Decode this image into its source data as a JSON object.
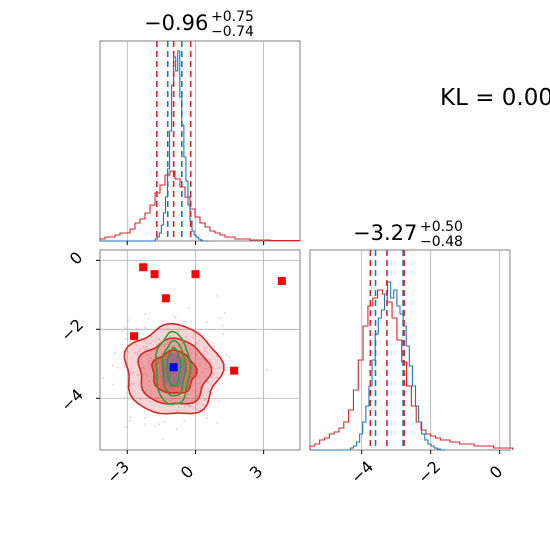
{
  "kl_label": "KL = 0.00",
  "colors": {
    "blue": "#1f77b4",
    "red": "#d62728",
    "green": "#2ca02c",
    "marker_red": "#ff0000",
    "marker_blue": "#0000ff",
    "grid": "#b0b0b0",
    "scatter_pink": "#f4a6c6"
  },
  "chart_data": [
    {
      "type": "histogram",
      "panel": "marginal-param-1",
      "title": {
        "median": "−0.96",
        "plus": "+0.75",
        "minus": "−0.74"
      },
      "xlim": [
        -4.2,
        4.6
      ],
      "ylim": [
        0,
        1.0
      ],
      "red_lines": [
        -1.7,
        -0.96,
        -0.21
      ],
      "blue_lines": [
        -1.22,
        -0.6
      ],
      "series": [
        {
          "color": "red",
          "bins_start": -4.2,
          "bin_width": 0.22,
          "values": [
            0.01,
            0.02,
            0.02,
            0.03,
            0.04,
            0.04,
            0.06,
            0.09,
            0.11,
            0.14,
            0.18,
            0.24,
            0.28,
            0.33,
            0.35,
            0.31,
            0.27,
            0.22,
            0.16,
            0.12,
            0.09,
            0.07,
            0.05,
            0.04,
            0.03,
            0.02,
            0.02,
            0.01,
            0.01,
            0.01,
            0.005,
            0.005,
            0.005,
            0.005,
            0.002,
            0.002,
            0.002,
            0.002,
            0.002,
            0.002
          ]
        },
        {
          "color": "blue",
          "bins_start": -4.2,
          "bin_width": 0.09,
          "values": [
            0,
            0,
            0,
            0,
            0,
            0,
            0,
            0,
            0,
            0,
            0,
            0,
            0,
            0,
            0,
            0,
            0,
            0,
            0,
            0,
            0,
            0,
            0,
            0,
            0,
            0,
            0,
            0.01,
            0.02,
            0.04,
            0.08,
            0.14,
            0.22,
            0.36,
            0.55,
            0.78,
            0.92,
            0.85,
            0.95,
            0.72,
            0.58,
            0.42,
            0.3,
            0.18,
            0.1,
            0.05,
            0.03,
            0.02,
            0.01,
            0.005,
            0,
            0,
            0
          ]
        }
      ]
    },
    {
      "type": "histogram",
      "panel": "marginal-param-2",
      "title": {
        "median": "−3.27",
        "plus": "+0.50",
        "minus": "−0.48"
      },
      "xlim": [
        -5.5,
        0.3
      ],
      "ylim": [
        0,
        1.0
      ],
      "xticks": [
        "−4",
        "−2",
        "0"
      ],
      "red_lines": [
        -3.75,
        -3.27,
        -2.77
      ],
      "blue_lines": [
        -3.6,
        -2.8
      ],
      "series": [
        {
          "color": "red",
          "bins_start": -5.5,
          "bin_width": 0.14,
          "values": [
            0.02,
            0.03,
            0.05,
            0.06,
            0.08,
            0.09,
            0.11,
            0.14,
            0.2,
            0.3,
            0.45,
            0.62,
            0.72,
            0.76,
            0.8,
            0.78,
            0.74,
            0.66,
            0.55,
            0.44,
            0.32,
            0.22,
            0.14,
            0.1,
            0.08,
            0.07,
            0.06,
            0.05,
            0.05,
            0.04,
            0.04,
            0.03,
            0.03,
            0.03,
            0.02,
            0.02,
            0.02,
            0.02,
            0.01,
            0.01,
            0.01,
            0.01
          ]
        },
        {
          "color": "blue",
          "bins_start": -5.5,
          "bin_width": 0.09,
          "values": [
            0,
            0,
            0,
            0,
            0,
            0,
            0,
            0,
            0,
            0,
            0,
            0,
            0,
            0.01,
            0.02,
            0.04,
            0.08,
            0.14,
            0.22,
            0.32,
            0.45,
            0.58,
            0.66,
            0.7,
            0.78,
            0.84,
            0.76,
            0.8,
            0.72,
            0.68,
            0.62,
            0.52,
            0.42,
            0.32,
            0.22,
            0.14,
            0.08,
            0.05,
            0.03,
            0.02,
            0.01,
            0.005,
            0,
            0
          ]
        }
      ]
    },
    {
      "type": "scatter",
      "panel": "joint-param-1-2",
      "xlim": [
        -4.2,
        4.6
      ],
      "ylim": [
        -5.5,
        0.3
      ],
      "xticks": [
        "−3",
        "0",
        "3"
      ],
      "yticks": [
        "0",
        "−2",
        "−4"
      ],
      "red_squares": [
        [
          -2.3,
          -0.2
        ],
        [
          -1.8,
          -0.4
        ],
        [
          0.0,
          -0.4
        ],
        [
          -1.3,
          -1.1
        ],
        [
          3.8,
          -0.6
        ],
        [
          -2.7,
          -2.2
        ],
        [
          1.7,
          -3.2
        ]
      ],
      "blue_square": [
        -0.96,
        -3.1
      ],
      "red_contours": [
        {
          "cx": -1.0,
          "cy": -3.2,
          "rx": 2.1,
          "ry": 1.3
        },
        {
          "cx": -0.95,
          "cy": -3.25,
          "rx": 1.55,
          "ry": 0.95
        },
        {
          "cx": -0.95,
          "cy": -3.25,
          "rx": 0.95,
          "ry": 0.62
        }
      ],
      "green_contours": [
        {
          "cx": -1.0,
          "cy": -3.15,
          "rx": 0.75,
          "ry": 1.05
        },
        {
          "cx": -0.95,
          "cy": -3.15,
          "rx": 0.5,
          "ry": 0.8
        },
        {
          "cx": -0.95,
          "cy": -3.1,
          "rx": 0.28,
          "ry": 0.55
        }
      ]
    }
  ]
}
